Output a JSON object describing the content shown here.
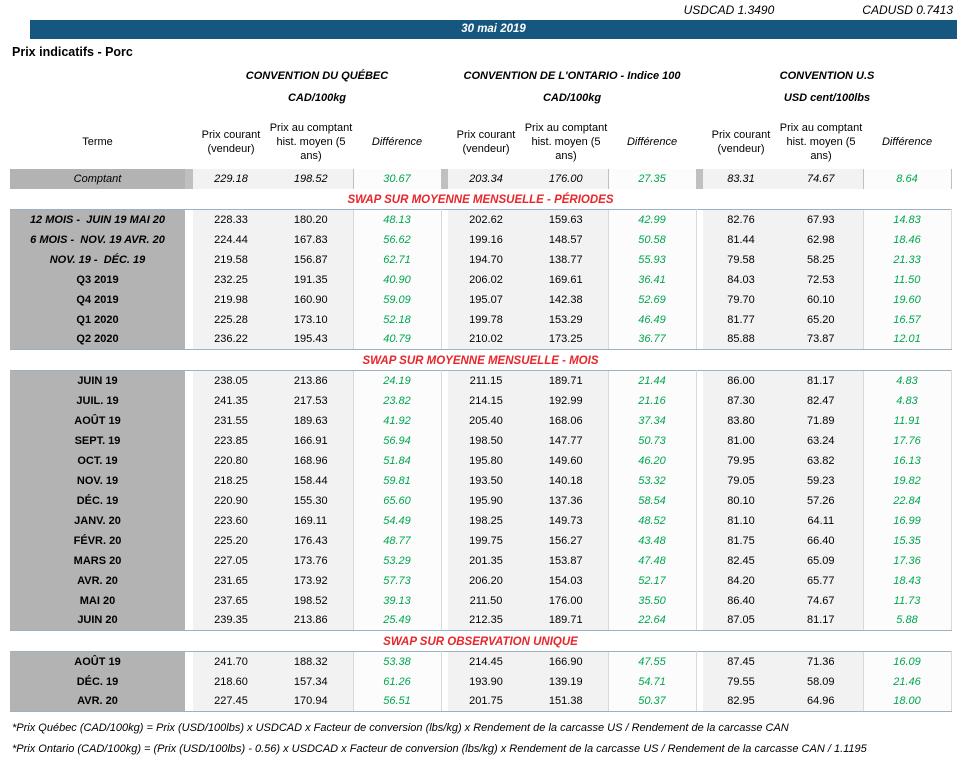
{
  "fx": {
    "usdcad": {
      "label": "USDCAD",
      "value": "1.3490"
    },
    "cadusd": {
      "label": "CADUSD",
      "value": "0.7413"
    }
  },
  "date_banner": "30 mai 2019",
  "page_title": "Prix indicatifs - Porc",
  "groups": [
    {
      "title": "CONVENTION DU QUÉBEC",
      "unit": "CAD/100kg"
    },
    {
      "title": "CONVENTION DE L'ONTARIO - Indice 100",
      "unit": "CAD/100kg"
    },
    {
      "title": "CONVENTION U.S",
      "unit": "USD cent/100lbs"
    }
  ],
  "columns": {
    "terme": "Terme",
    "current": "Prix courant (vendeur)",
    "hist": "Prix au comptant hist. moyen (5 ans)",
    "diff": "Différence"
  },
  "spot_row": {
    "terme": "Comptant",
    "values": [
      "229.18",
      "198.52",
      "30.67",
      "203.34",
      "176.00",
      "27.35",
      "83.31",
      "74.67",
      "8.64"
    ]
  },
  "sections": [
    {
      "title": "SWAP SUR MOYENNE MENSUELLE - PÉRIODES",
      "rows": [
        {
          "terme": "12 MOIS -  JUIN 19 MAI 20",
          "em": true,
          "values": [
            "228.33",
            "180.20",
            "48.13",
            "202.62",
            "159.63",
            "42.99",
            "82.76",
            "67.93",
            "14.83"
          ]
        },
        {
          "terme": "6 MOIS -  NOV. 19 AVR. 20",
          "em": true,
          "values": [
            "224.44",
            "167.83",
            "56.62",
            "199.16",
            "148.57",
            "50.58",
            "81.44",
            "62.98",
            "18.46"
          ]
        },
        {
          "terme": "NOV. 19 -  DÉC. 19",
          "em": true,
          "values": [
            "219.58",
            "156.87",
            "62.71",
            "194.70",
            "138.77",
            "55.93",
            "79.58",
            "58.25",
            "21.33"
          ]
        },
        {
          "terme": "Q3 2019",
          "values": [
            "232.25",
            "191.35",
            "40.90",
            "206.02",
            "169.61",
            "36.41",
            "84.03",
            "72.53",
            "11.50"
          ]
        },
        {
          "terme": "Q4 2019",
          "values": [
            "219.98",
            "160.90",
            "59.09",
            "195.07",
            "142.38",
            "52.69",
            "79.70",
            "60.10",
            "19.60"
          ]
        },
        {
          "terme": "Q1 2020",
          "values": [
            "225.28",
            "173.10",
            "52.18",
            "199.78",
            "153.29",
            "46.49",
            "81.77",
            "65.20",
            "16.57"
          ]
        },
        {
          "terme": "Q2 2020",
          "values": [
            "236.22",
            "195.43",
            "40.79",
            "210.02",
            "173.25",
            "36.77",
            "85.88",
            "73.87",
            "12.01"
          ]
        }
      ]
    },
    {
      "title": "SWAP SUR MOYENNE MENSUELLE - MOIS",
      "rows": [
        {
          "terme": "JUIN 19",
          "values": [
            "238.05",
            "213.86",
            "24.19",
            "211.15",
            "189.71",
            "21.44",
            "86.00",
            "81.17",
            "4.83"
          ]
        },
        {
          "terme": "JUIL. 19",
          "values": [
            "241.35",
            "217.53",
            "23.82",
            "214.15",
            "192.99",
            "21.16",
            "87.30",
            "82.47",
            "4.83"
          ]
        },
        {
          "terme": "AOÛT 19",
          "values": [
            "231.55",
            "189.63",
            "41.92",
            "205.40",
            "168.06",
            "37.34",
            "83.80",
            "71.89",
            "11.91"
          ]
        },
        {
          "terme": "SEPT. 19",
          "values": [
            "223.85",
            "166.91",
            "56.94",
            "198.50",
            "147.77",
            "50.73",
            "81.00",
            "63.24",
            "17.76"
          ]
        },
        {
          "terme": "OCT. 19",
          "values": [
            "220.80",
            "168.96",
            "51.84",
            "195.80",
            "149.60",
            "46.20",
            "79.95",
            "63.82",
            "16.13"
          ]
        },
        {
          "terme": "NOV. 19",
          "values": [
            "218.25",
            "158.44",
            "59.81",
            "193.50",
            "140.18",
            "53.32",
            "79.05",
            "59.23",
            "19.82"
          ]
        },
        {
          "terme": "DÉC. 19",
          "values": [
            "220.90",
            "155.30",
            "65.60",
            "195.90",
            "137.36",
            "58.54",
            "80.10",
            "57.26",
            "22.84"
          ]
        },
        {
          "terme": "JANV. 20",
          "values": [
            "223.60",
            "169.11",
            "54.49",
            "198.25",
            "149.73",
            "48.52",
            "81.10",
            "64.11",
            "16.99"
          ]
        },
        {
          "terme": "FÉVR. 20",
          "values": [
            "225.20",
            "176.43",
            "48.77",
            "199.75",
            "156.27",
            "43.48",
            "81.75",
            "66.40",
            "15.35"
          ]
        },
        {
          "terme": "MARS 20",
          "values": [
            "227.05",
            "173.76",
            "53.29",
            "201.35",
            "153.87",
            "47.48",
            "82.45",
            "65.09",
            "17.36"
          ]
        },
        {
          "terme": "AVR. 20",
          "values": [
            "231.65",
            "173.92",
            "57.73",
            "206.20",
            "154.03",
            "52.17",
            "84.20",
            "65.77",
            "18.43"
          ]
        },
        {
          "terme": "MAI 20",
          "values": [
            "237.65",
            "198.52",
            "39.13",
            "211.50",
            "176.00",
            "35.50",
            "86.40",
            "74.67",
            "11.73"
          ]
        },
        {
          "terme": "JUIN 20",
          "values": [
            "239.35",
            "213.86",
            "25.49",
            "212.35",
            "189.71",
            "22.64",
            "87.05",
            "81.17",
            "5.88"
          ]
        }
      ]
    },
    {
      "title": "SWAP SUR OBSERVATION UNIQUE",
      "rows": [
        {
          "terme": "AOÛT 19",
          "values": [
            "241.70",
            "188.32",
            "53.38",
            "214.45",
            "166.90",
            "47.55",
            "87.45",
            "71.36",
            "16.09"
          ]
        },
        {
          "terme": "DÉC. 19",
          "values": [
            "218.60",
            "157.34",
            "61.26",
            "193.90",
            "139.19",
            "54.71",
            "79.55",
            "58.09",
            "21.46"
          ]
        },
        {
          "terme": "AVR. 20",
          "values": [
            "227.45",
            "170.94",
            "56.51",
            "201.75",
            "151.38",
            "50.37",
            "82.95",
            "64.96",
            "18.00"
          ]
        }
      ]
    }
  ],
  "footnotes": [
    "*Prix Québec (CAD/100kg) = Prix (USD/100lbs) x USDCAD x Facteur de conversion (lbs/kg) x Rendement de la carcasse US / Rendement de la carcasse CAN",
    "*Prix Ontario (CAD/100kg) = (Prix (USD/100lbs) - 0.56) x USDCAD x Facteur de conversion (lbs/kg) x Rendement de la carcasse US / Rendement de la carcasse CAN / 1.1195"
  ],
  "colors": {
    "banner_blue": "#15577F",
    "section_red": "#E8262B",
    "positive_green": "#00A651",
    "terme_column_gray": "#B3B3B3",
    "data_cell_gray": "#F2F2F2",
    "spot_row_gray": "#C0C0C0"
  }
}
